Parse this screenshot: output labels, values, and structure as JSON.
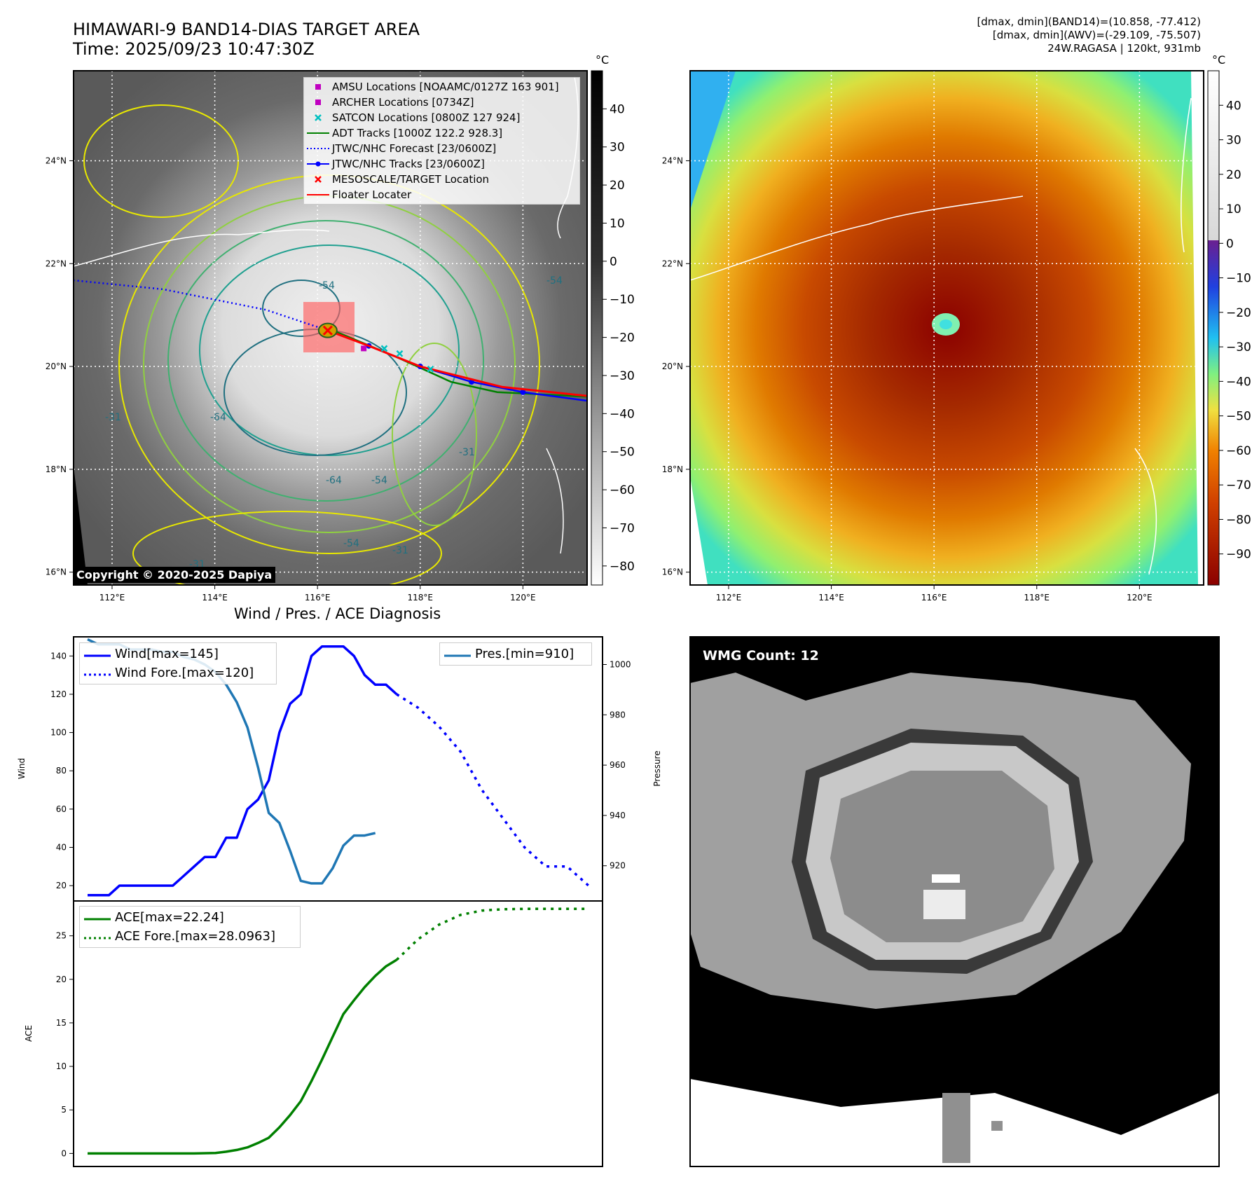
{
  "header": {
    "title_line1": "HIMAWARI-9 BAND14-DIAS TARGET AREA",
    "title_line2": "Time: 2025/09/23 10:47:30Z",
    "info_line1": "[dmax, dmin](BAND14)=(10.858, -77.412)",
    "info_line2": "[dmax, dmin](AWV)=(-29.109, -75.507)",
    "info_line3": "24W.RAGASA | 120kt, 931mb"
  },
  "map": {
    "lon_ticks": [
      "112°E",
      "114°E",
      "116°E",
      "118°E",
      "120°E"
    ],
    "lat_ticks": [
      "24°N",
      "22°N",
      "20°N",
      "18°N",
      "16°N"
    ],
    "lon_values": [
      112,
      114,
      116,
      118,
      120
    ],
    "lat_values": [
      24,
      22,
      20,
      18,
      16
    ],
    "copyright": "Copyright © 2020-2025 Dapiya",
    "contour_labels": [
      "-54",
      "-64",
      "-64",
      "-54",
      "-31",
      "-31",
      "-54",
      "-31",
      "-31",
      "-54"
    ]
  },
  "track": {
    "jtwc_forecast": [
      [
        111,
        21.7
      ],
      [
        113,
        21.5
      ],
      [
        115,
        21.1
      ],
      [
        116.2,
        20.7
      ]
    ],
    "jtwc_track": [
      [
        116.2,
        20.7
      ],
      [
        117,
        20.4
      ],
      [
        118,
        20.0
      ],
      [
        119,
        19.7
      ],
      [
        120,
        19.5
      ],
      [
        121.5,
        19.3
      ]
    ],
    "floater": [
      [
        116.2,
        20.7
      ],
      [
        117,
        20.4
      ],
      [
        118,
        20.0
      ],
      [
        118.8,
        19.8
      ],
      [
        119.6,
        19.6
      ],
      [
        121.5,
        19.4
      ]
    ],
    "adt": [
      [
        116.3,
        20.7
      ],
      [
        117.5,
        20.2
      ],
      [
        118.6,
        19.7
      ],
      [
        119.5,
        19.5
      ],
      [
        121.5,
        19.4
      ]
    ],
    "target": [
      116.2,
      20.7
    ],
    "amsu": [
      116.9,
      20.35
    ],
    "archer": [
      116.9,
      20.35
    ],
    "satcon": [
      [
        117.3,
        20.35
      ],
      [
        117.6,
        20.25
      ],
      [
        118.2,
        19.95
      ]
    ]
  },
  "legend_map": [
    {
      "label": "AMSU Locations [NOAAMC/0127Z 163 901]",
      "color": "#c000c0",
      "symbol": "square"
    },
    {
      "label": "ARCHER Locations [0734Z]",
      "color": "#c000c0",
      "symbol": "square"
    },
    {
      "label": "SATCON Locations [0800Z 127 924]",
      "color": "#00c0c0",
      "symbol": "x"
    },
    {
      "label": "ADT Tracks [1000Z 122.2 928.3]",
      "color": "#008000",
      "symbol": "line"
    },
    {
      "label": "JTWC/NHC Forecast [23/0600Z]",
      "color": "#0000ff",
      "symbol": "dotted"
    },
    {
      "label": "JTWC/NHC Tracks [23/0600Z]",
      "color": "#0000ff",
      "symbol": "line-dot"
    },
    {
      "label": "MESOSCALE/TARGET Location",
      "color": "#ff0000",
      "symbol": "x"
    },
    {
      "label": "Floater Locater",
      "color": "#ff0000",
      "symbol": "line"
    }
  ],
  "colorbar_gray": {
    "unit": "°C",
    "ticks": [
      "40",
      "30",
      "20",
      "10",
      "0",
      "−10",
      "−20",
      "−30",
      "−40",
      "−50",
      "−60",
      "−70",
      "−80"
    ],
    "tick_values": [
      40,
      30,
      20,
      10,
      0,
      -10,
      -20,
      -30,
      -40,
      -50,
      -60,
      -70,
      -80
    ],
    "range": [
      -85,
      50
    ]
  },
  "colorbar_color": {
    "unit": "°C",
    "ticks": [
      "40",
      "30",
      "20",
      "10",
      "0",
      "−10",
      "−20",
      "−30",
      "−40",
      "−50",
      "−60",
      "−70",
      "−80",
      "−90"
    ],
    "tick_values": [
      40,
      30,
      20,
      10,
      0,
      -10,
      -20,
      -30,
      -40,
      -50,
      -60,
      -70,
      -80,
      -90
    ],
    "range": [
      -99,
      50
    ]
  },
  "chart_data": [
    {
      "type": "line",
      "title": "Wind / Pres. / ACE Diagnosis",
      "ylabel": "Wind",
      "ylabel2": "Pressure",
      "ylim": [
        12,
        150
      ],
      "ylim2": [
        906,
        1011
      ],
      "xlim": [
        0,
        47
      ],
      "yticks": [
        20,
        40,
        60,
        80,
        100,
        120,
        140
      ],
      "yticks2": [
        920,
        940,
        960,
        980,
        1000
      ],
      "series": [
        {
          "name": "Wind[max=145]",
          "color": "#0000ff",
          "style": "solid",
          "axis": "left",
          "x": [
            0,
            1,
            2,
            3,
            4,
            5,
            6,
            7,
            8,
            9,
            10,
            11,
            12,
            13,
            14,
            15,
            16,
            17,
            18,
            19,
            20,
            21,
            22,
            23,
            24,
            25,
            26,
            27,
            28,
            29,
            30,
            31,
            32
          ],
          "values": [
            15,
            15,
            15,
            20,
            20,
            20,
            20,
            20,
            20,
            25,
            30,
            35,
            35,
            45,
            45,
            60,
            65,
            75,
            100,
            115,
            120,
            140,
            145,
            145,
            145,
            140,
            130,
            125,
            125,
            120,
            null,
            null,
            null
          ]
        },
        {
          "name": "Wind Fore.[max=120]",
          "color": "#0000ff",
          "style": "dotted",
          "axis": "left",
          "x": [
            29,
            31,
            33,
            35,
            37,
            39,
            41,
            43,
            45,
            47
          ],
          "values": [
            120,
            113,
            103,
            90,
            70,
            55,
            40,
            30,
            30,
            20
          ]
        },
        {
          "name": "Pres.[min=910]",
          "color": "#1f77b4",
          "style": "solid",
          "axis": "right",
          "x": [
            0,
            1,
            2,
            3,
            4,
            5,
            6,
            7,
            8,
            9,
            10,
            11,
            12,
            13,
            14,
            15,
            16,
            17,
            18,
            19,
            20,
            21,
            22,
            23,
            24,
            25,
            26,
            27,
            28,
            29,
            30,
            31,
            32
          ],
          "values": [
            1010,
            1008,
            1008,
            1008,
            1006,
            1006,
            1006,
            1005,
            1005,
            1003,
            1002,
            1000,
            997,
            992,
            985,
            975,
            959,
            941,
            937,
            926,
            914,
            913,
            913,
            919,
            928,
            932,
            932,
            933,
            null,
            null,
            null,
            null,
            null
          ]
        }
      ]
    },
    {
      "type": "line",
      "ylabel": "ACE",
      "ylim": [
        -1.5,
        29
      ],
      "xlim": [
        0,
        47
      ],
      "yticks": [
        0,
        5,
        10,
        15,
        20,
        25
      ],
      "series": [
        {
          "name": "ACE[max=22.24]",
          "color": "#008000",
          "style": "solid",
          "x": [
            0,
            2,
            4,
            6,
            8,
            10,
            12,
            13,
            14,
            15,
            16,
            17,
            18,
            19,
            20,
            21,
            22,
            23,
            24,
            25,
            26,
            27,
            28,
            29
          ],
          "values": [
            0,
            0,
            0,
            0,
            0,
            0,
            0.05,
            0.2,
            0.4,
            0.7,
            1.2,
            1.8,
            3.0,
            4.4,
            6.0,
            8.3,
            10.8,
            13.4,
            16.0,
            17.6,
            19.1,
            20.4,
            21.5,
            22.24
          ]
        },
        {
          "name": "ACE Fore.[max=28.0963]",
          "color": "#008000",
          "style": "dotted",
          "x": [
            29,
            31,
            33,
            35,
            37,
            39,
            41,
            43,
            45,
            47
          ],
          "values": [
            22.24,
            24.6,
            26.3,
            27.4,
            27.9,
            28.05,
            28.09,
            28.09,
            28.09,
            28.0963
          ]
        }
      ]
    }
  ],
  "wmg": {
    "label": "WMG Count: 12"
  }
}
